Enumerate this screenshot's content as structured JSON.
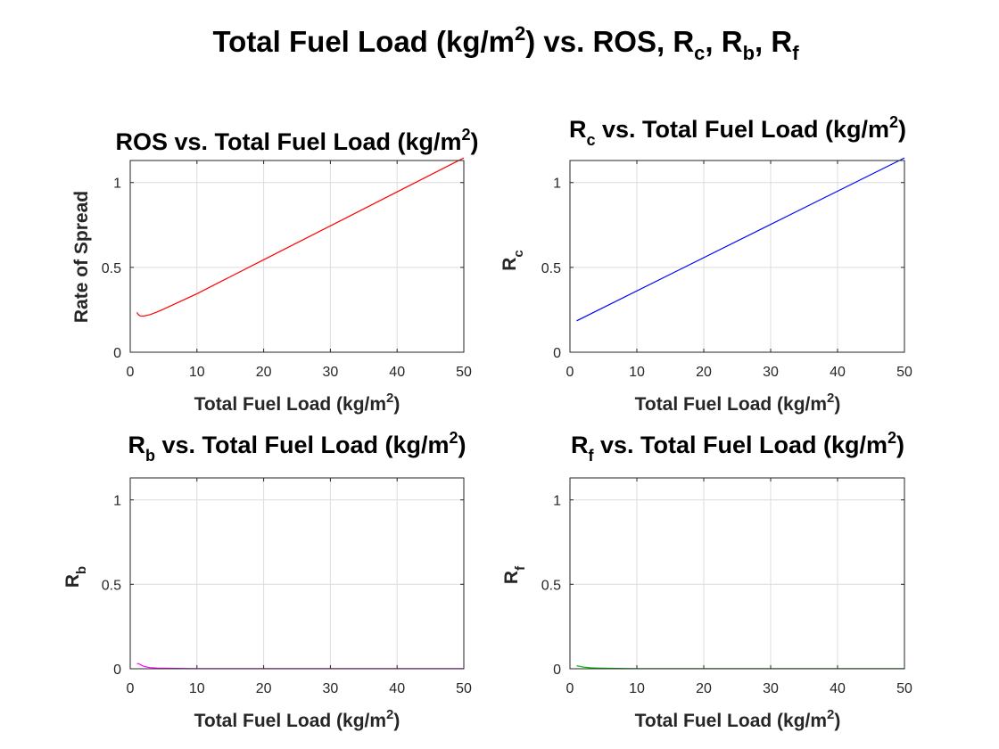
{
  "figure": {
    "title": {
      "base": "Total Fuel Load (kg/m",
      "sup": "2",
      "mid": ") vs. ROS, R",
      "sub_c": "c",
      "comma1": ", R",
      "sub_b": "b",
      "comma2": ", R",
      "sub_f": "f"
    }
  },
  "chart_data": [
    {
      "type": "line",
      "title": {
        "pre": "ROS vs. Total Fuel Load (kg/m",
        "sup": "2",
        "post": ")"
      },
      "xlabel": {
        "pre": "Total Fuel Load (kg/m",
        "sup": "2",
        "post": ")"
      },
      "ylabel": {
        "text": "Rate of Spread"
      },
      "xlim": [
        0,
        50
      ],
      "ylim": [
        0,
        1.13
      ],
      "xticks": [
        "0",
        "10",
        "20",
        "30",
        "40",
        "50"
      ],
      "yticks": [
        "0",
        "0.5",
        "1"
      ],
      "grid": true,
      "color": "#ff0000",
      "series": [
        {
          "x": [
            1,
            1.2,
            1.5,
            2,
            2.5,
            3,
            4,
            5,
            10,
            20,
            30,
            40,
            50
          ],
          "y": [
            0.235,
            0.222,
            0.214,
            0.213,
            0.217,
            0.222,
            0.237,
            0.254,
            0.345,
            0.545,
            0.745,
            0.945,
            1.145
          ]
        }
      ]
    },
    {
      "type": "line",
      "title": {
        "pre": "R",
        "sub": "c",
        "post": " vs. Total Fuel Load (kg/m",
        "sup": "2",
        "end": ")"
      },
      "xlabel": {
        "pre": "Total Fuel Load (kg/m",
        "sup": "2",
        "post": ")"
      },
      "ylabel": {
        "pre": "R",
        "sub": "c"
      },
      "xlim": [
        0,
        50
      ],
      "ylim": [
        0,
        1.13
      ],
      "xticks": [
        "0",
        "10",
        "20",
        "30",
        "40",
        "50"
      ],
      "yticks": [
        "0",
        "0.5",
        "1"
      ],
      "grid": true,
      "color": "#0000ff",
      "series": [
        {
          "x": [
            1,
            50
          ],
          "y": [
            0.185,
            1.145
          ]
        }
      ]
    },
    {
      "type": "line",
      "title": {
        "pre": "R",
        "sub": "b",
        "post": " vs. Total Fuel Load (kg/m",
        "sup": "2",
        "end": ")"
      },
      "xlabel": {
        "pre": "Total Fuel Load (kg/m",
        "sup": "2",
        "post": ")"
      },
      "ylabel": {
        "pre": "R",
        "sub": "b"
      },
      "xlim": [
        0,
        50
      ],
      "ylim": [
        0,
        1.13
      ],
      "xticks": [
        "0",
        "10",
        "20",
        "30",
        "40",
        "50"
      ],
      "yticks": [
        "0",
        "0.5",
        "1"
      ],
      "grid": true,
      "color": "#ff00ff",
      "series": [
        {
          "x": [
            1,
            1.3,
            1.6,
            2,
            2.5,
            3,
            4,
            5,
            7,
            10,
            20,
            30,
            40,
            50
          ],
          "y": [
            0.03,
            0.03,
            0.022,
            0.015,
            0.01,
            0.007,
            0.004,
            0.003,
            0.002,
            0.001,
            0.001,
            0.001,
            0.001,
            0.001
          ]
        }
      ]
    },
    {
      "type": "line",
      "title": {
        "pre": "R",
        "sub": "f",
        "post": " vs. Total Fuel Load (kg/m",
        "sup": "2",
        "end": ")"
      },
      "xlabel": {
        "pre": "Total Fuel Load (kg/m",
        "sup": "2",
        "post": ")"
      },
      "ylabel": {
        "pre": "R",
        "sub": "f"
      },
      "xlim": [
        0,
        50
      ],
      "ylim": [
        0,
        1.13
      ],
      "xticks": [
        "0",
        "10",
        "20",
        "30",
        "40",
        "50"
      ],
      "yticks": [
        "0",
        "0.5",
        "1"
      ],
      "grid": true,
      "color": "#00bb00",
      "series": [
        {
          "x": [
            1,
            1.5,
            2,
            3,
            4,
            5,
            7,
            10,
            20,
            30,
            40,
            50
          ],
          "y": [
            0.018,
            0.014,
            0.01,
            0.006,
            0.004,
            0.003,
            0.002,
            0.001,
            0.001,
            0.001,
            0.001,
            0.001
          ]
        }
      ]
    }
  ]
}
